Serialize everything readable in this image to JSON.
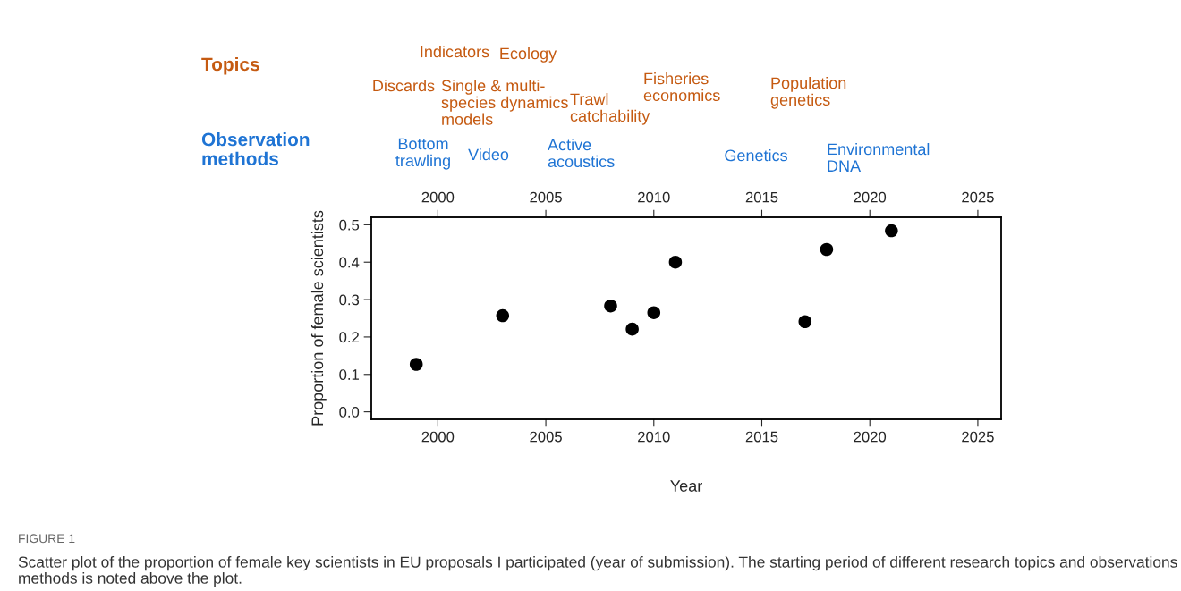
{
  "chart_data": {
    "type": "scatter",
    "xlabel": "Year",
    "ylabel": "Proportion of female scientists",
    "x": [
      1999,
      2003,
      2008,
      2009,
      2010,
      2011,
      2017,
      2018,
      2021
    ],
    "values": [
      0.127,
      0.257,
      0.283,
      0.221,
      0.265,
      0.4,
      0.241,
      0.434,
      0.484
    ],
    "color": "#000000",
    "marker": "circle",
    "xlim": [
      1996.92,
      2026.08
    ],
    "xticks": [
      2000,
      2005,
      2010,
      2015,
      2020,
      2025
    ],
    "x2lim": [
      1996.92,
      2026.08
    ],
    "x2ticks": [
      2000,
      2005,
      2010,
      2015,
      2020,
      2025
    ],
    "ylim": [
      -0.02,
      0.52
    ],
    "yticks": [
      {
        "value": 0,
        "label": "0.0"
      },
      {
        "value": 0.1,
        "label": "0.1"
      },
      {
        "value": 0.2,
        "label": "0.2"
      },
      {
        "value": 0.3,
        "label": "0.3"
      },
      {
        "value": 0.4,
        "label": "0.4"
      },
      {
        "value": 0.5,
        "label": "0.5"
      }
    ],
    "grid": false,
    "annotations": [
      "Topics",
      "Observation\nmethods",
      "Discards",
      "Indicators",
      "Single & multi-\nspecies dynamics\nmodels",
      "Ecology",
      "Trawl\ncatchability",
      "Fisheries\neconomics",
      "Population\ngenetics",
      "Bottom\ntrawling",
      "Video",
      "Active\nacoustics",
      "Genetics",
      "Environmental\nDNA",
      "FIGURE 1",
      "Scatter plot of the proportion of female key scientists in EU proposals I participated (year of submission). The starting period of different research topics and observations methods is noted above the plot."
    ]
  }
}
